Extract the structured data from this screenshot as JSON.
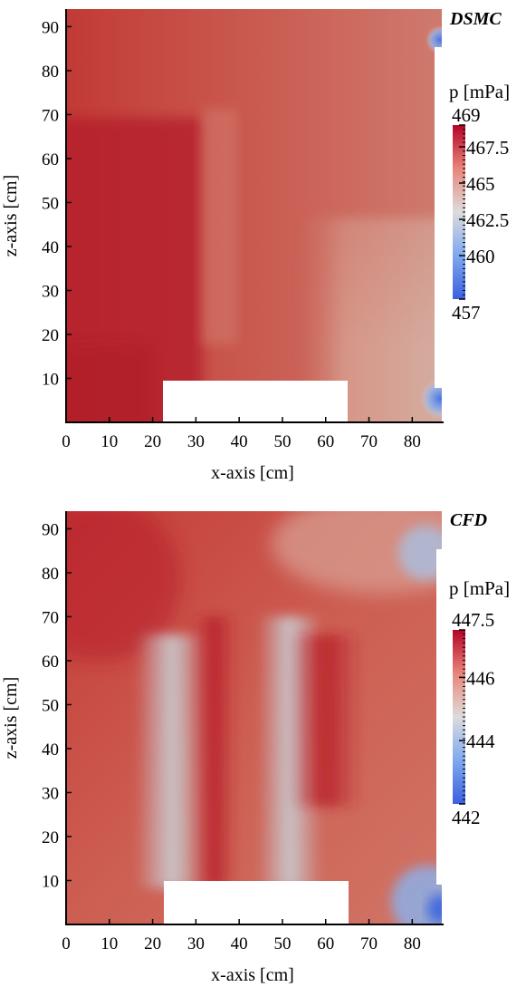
{
  "chart_data": [
    {
      "type": "heatmap",
      "title": "DSMC",
      "xlabel": "x-axis [cm]",
      "ylabel": "z-axis [cm]",
      "xlim": [
        0,
        86
      ],
      "ylim": [
        0,
        94
      ],
      "xticks": [
        0,
        10,
        20,
        30,
        40,
        50,
        60,
        70,
        80
      ],
      "yticks": [
        10,
        20,
        30,
        40,
        50,
        60,
        70,
        80,
        90
      ],
      "colorbar": {
        "label": "p [mPa]",
        "min": 457,
        "max": 469,
        "ticks": [
          "469",
          "467.5",
          "465",
          "462.5",
          "460",
          "457"
        ],
        "tick_values": [
          469,
          467.5,
          465,
          462.5,
          460,
          457
        ]
      },
      "obstacle": {
        "x": [
          22,
          64
        ],
        "z": [
          0,
          10
        ]
      }
    },
    {
      "type": "heatmap",
      "title": "CFD",
      "xlabel": "x-axis [cm]",
      "ylabel": "z-axis [cm]",
      "xlim": [
        0,
        86
      ],
      "ylim": [
        0,
        94
      ],
      "xticks": [
        0,
        10,
        20,
        30,
        40,
        50,
        60,
        70,
        80
      ],
      "yticks": [
        10,
        20,
        30,
        40,
        50,
        60,
        70,
        80,
        90
      ],
      "colorbar": {
        "label": "p [mPa]",
        "min": 442,
        "max": 447.5,
        "ticks": [
          "447.5",
          "446",
          "444",
          "442"
        ],
        "tick_values": [
          447.5,
          446,
          444,
          442
        ]
      },
      "obstacle": {
        "x": [
          22,
          64
        ],
        "z": [
          0,
          10
        ]
      }
    }
  ]
}
